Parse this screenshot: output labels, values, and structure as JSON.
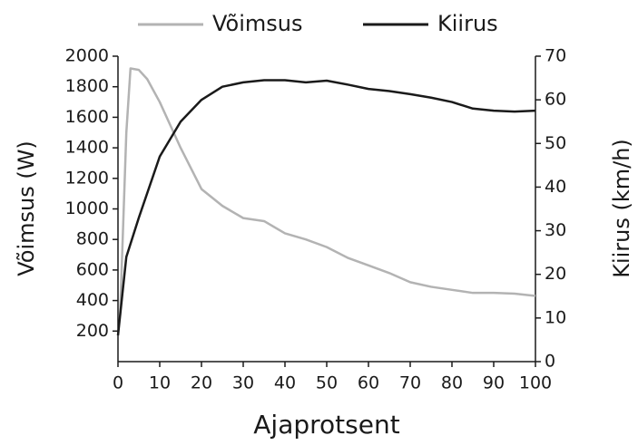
{
  "chart_data": {
    "type": "line",
    "xlabel": "Ajaprotsent",
    "ylabel": "Võimsus (W)",
    "y2label": "Kiirus (km/h)",
    "xlim": [
      0,
      100
    ],
    "xticks": [
      0,
      10,
      20,
      30,
      40,
      50,
      60,
      70,
      80,
      90,
      100
    ],
    "ylim": [
      0,
      2000
    ],
    "yticks": [
      200,
      400,
      600,
      800,
      1000,
      1200,
      1400,
      1600,
      1800,
      2000
    ],
    "y2lim": [
      0,
      70
    ],
    "y2ticks": [
      0,
      10,
      20,
      30,
      40,
      50,
      60,
      70
    ],
    "legend": "top",
    "series": [
      {
        "name": "Võimsus",
        "color": "#b3b3b3",
        "x": [
          0.5,
          2,
          3,
          5,
          7,
          10,
          15,
          20,
          25,
          30,
          35,
          40,
          45,
          50,
          55,
          60,
          65,
          70,
          75,
          80,
          85,
          90,
          95,
          100
        ],
        "values": [
          300,
          1500,
          1920,
          1910,
          1850,
          1700,
          1400,
          1130,
          1020,
          940,
          920,
          840,
          800,
          750,
          680,
          630,
          580,
          520,
          490,
          470,
          450,
          450,
          445,
          430
        ]
      },
      {
        "name": "Kiirus",
        "color": "#1a1a1a",
        "axis": "y2",
        "x": [
          0,
          1,
          2,
          5,
          10,
          15,
          20,
          25,
          30,
          35,
          40,
          45,
          50,
          55,
          60,
          65,
          70,
          75,
          80,
          85,
          90,
          95,
          100
        ],
        "values": [
          6,
          15,
          24,
          33,
          47,
          55,
          60,
          63,
          64,
          64.5,
          64.5,
          64,
          64.4,
          63.5,
          62.5,
          62,
          61.3,
          60.5,
          59.5,
          58,
          57.5,
          57.3,
          57.5
        ]
      }
    ]
  }
}
